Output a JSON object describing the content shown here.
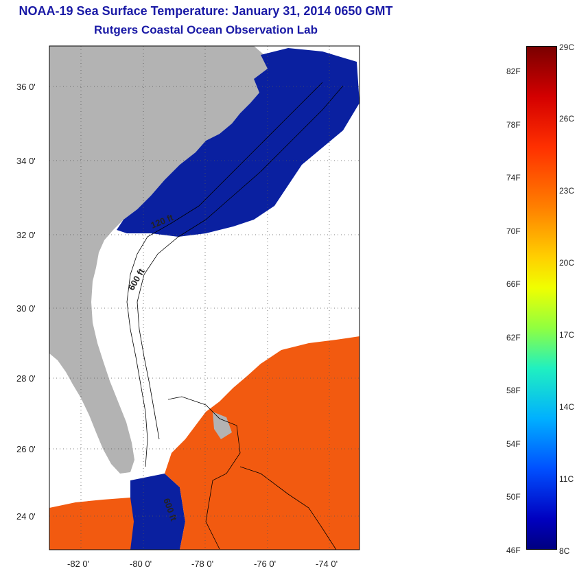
{
  "title": {
    "line1": "NOAA-19 Sea Surface Temperature:  January 31, 2014 0650 GMT",
    "line2": "Rutgers Coastal Ocean Observation Lab"
  },
  "map": {
    "lat_ticks": [
      "36 0'",
      "34 0'",
      "32 0'",
      "30 0'",
      "28 0'",
      "26 0'",
      "24 0'"
    ],
    "lon_ticks": [
      "-82 0'",
      "-80 0'",
      "-78 0'",
      "-76 0'",
      "-74 0'"
    ],
    "contours": [
      "120 ft",
      "600 ft",
      "600 ft"
    ],
    "colors": {
      "land": "#b3b3b3",
      "cold": "#0a20a0",
      "warm": "#f25a10"
    }
  },
  "colorbar": {
    "celsius": [
      "29C",
      "26C",
      "23C",
      "20C",
      "17C",
      "14C",
      "11C",
      "8C"
    ],
    "fahrenheit": [
      "82F",
      "78F",
      "74F",
      "70F",
      "66F",
      "62F",
      "58F",
      "54F",
      "50F",
      "46F"
    ]
  }
}
